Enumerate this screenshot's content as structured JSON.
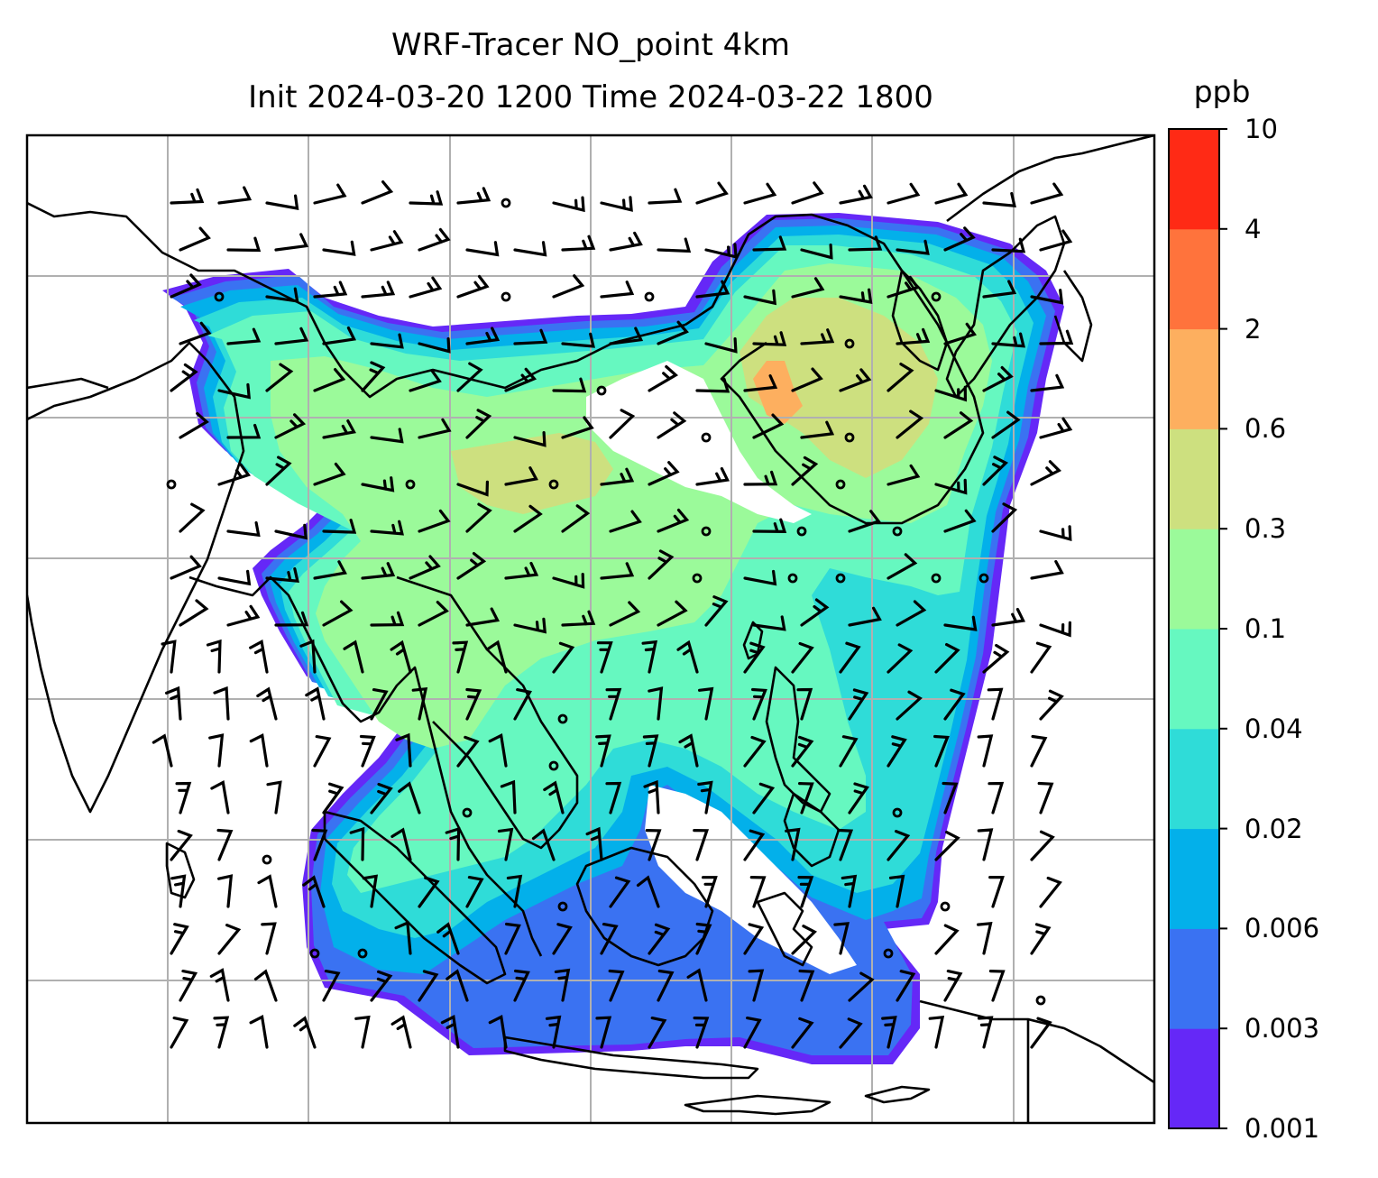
{
  "title": {
    "line1": "WRF-Tracer NO_point 4km",
    "line2": "Init 2024-03-20 1200 Time 2024-03-22 1800"
  },
  "colorbar": {
    "unit": "ppb",
    "ticks": [
      "0.001",
      "0.003",
      "0.006",
      "0.02",
      "0.04",
      "0.1",
      "0.3",
      "0.6",
      "2",
      "4",
      "10"
    ],
    "colors": [
      "#6528f7",
      "#3a72f2",
      "#03b0ea",
      "#2fdcd8",
      "#66f8c0",
      "#9bfa9a",
      "#cde07f",
      "#fdaf5f",
      "#ff733c",
      "#ff2a15"
    ]
  },
  "map": {
    "variable": "NO_point tracer",
    "overlays": [
      "coastlines",
      "country-borders",
      "lat-lon-gridlines",
      "wind-barbs",
      "calm-wind-circles"
    ],
    "gridlines": "on",
    "colors": {
      "coastline": "#000000",
      "gridline": "#b0b0b0",
      "frame": "#000000"
    }
  }
}
